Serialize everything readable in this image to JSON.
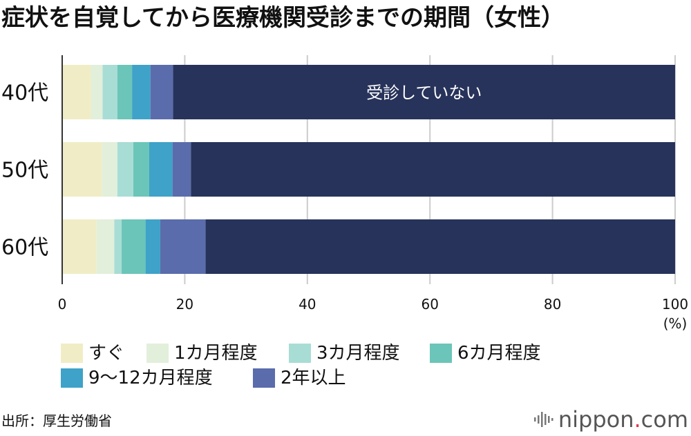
{
  "chart_data": {
    "type": "bar",
    "orientation": "horizontal",
    "stacked": true,
    "title": "症状を自覚してから医療機関受診までの期間（女性）",
    "categories": [
      "40代",
      "50代",
      "60代"
    ],
    "series": [
      {
        "name": "すぐ",
        "color": "#f0edc6",
        "values": [
          4.7,
          6.5,
          5.6
        ],
        "in_legend": true
      },
      {
        "name": "1カ月程度",
        "color": "#e2efdb",
        "values": [
          1.9,
          2.5,
          2.9
        ],
        "in_legend": true
      },
      {
        "name": "3カ月程度",
        "color": "#a8ddd5",
        "values": [
          2.4,
          2.6,
          1.2
        ],
        "in_legend": true
      },
      {
        "name": "6カ月程度",
        "color": "#6bc5b8",
        "values": [
          2.4,
          2.6,
          3.9
        ],
        "in_legend": true
      },
      {
        "name": "9〜12カ月程度",
        "color": "#3fa2c8",
        "values": [
          3.0,
          3.8,
          2.4
        ],
        "in_legend": true
      },
      {
        "name": "2年以上",
        "color": "#5a6cac",
        "values": [
          3.7,
          3.0,
          7.4
        ],
        "in_legend": true
      },
      {
        "name": "受診していない",
        "color": "#27335a",
        "values": [
          81.9,
          79.0,
          76.6
        ],
        "in_legend": false,
        "label_in_bar_category_index": 0
      }
    ],
    "xlim": [
      0,
      100
    ],
    "xticks": [
      0,
      20,
      40,
      60,
      80,
      100
    ],
    "x_unit": "(%)",
    "grid": true,
    "legend_position": "bottom-left"
  },
  "source": "出所：厚生労働省",
  "logo": {
    "name": "nippon",
    "dot": ".",
    "tld": "com"
  },
  "colors": {
    "background": "#ffffff",
    "text": "#111111",
    "grid": "#cccccc",
    "axis": "#333333",
    "bar_label": "#ffffff",
    "logo": "#555555",
    "logo_dot": "#e2364b"
  }
}
